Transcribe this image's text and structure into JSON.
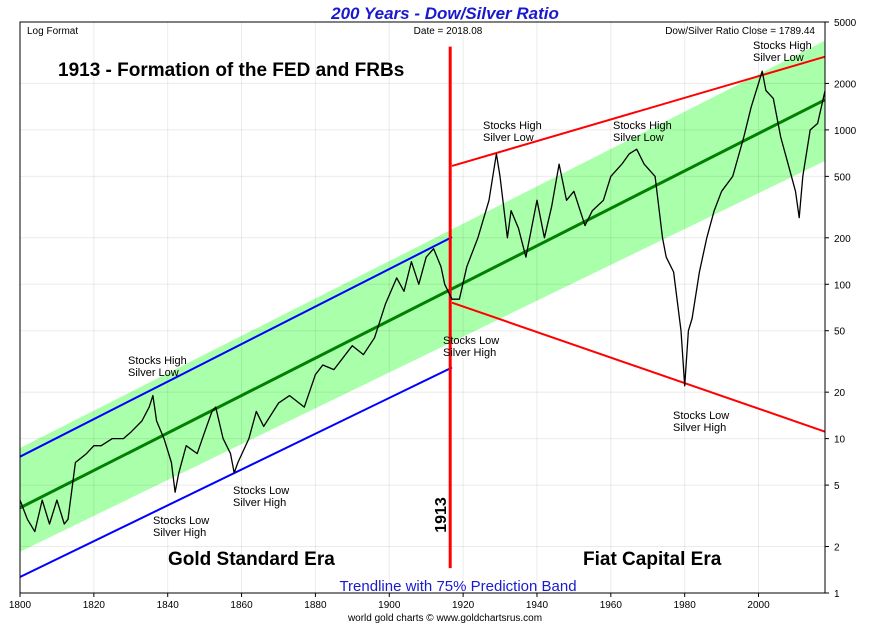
{
  "chart_data": {
    "type": "line",
    "title": "200 Years - Dow/Silver Ratio",
    "header": [
      "Log Format",
      "Date = 2018.08",
      "Dow/Silver Ratio Close = 1789.44"
    ],
    "footer": "world gold charts © www.goldchartsrus.com",
    "log_scale": true,
    "grid": true,
    "xlim": [
      1800,
      2018
    ],
    "xticks": [
      1800,
      1820,
      1840,
      1860,
      1880,
      1900,
      1920,
      1940,
      1960,
      1980,
      2000
    ],
    "ylim": [
      1,
      5000
    ],
    "yticks": [
      1,
      2,
      5,
      10,
      20,
      50,
      100,
      200,
      500,
      1000,
      2000,
      5000
    ],
    "x": [
      1800,
      1802,
      1804,
      1806,
      1808,
      1810,
      1812,
      1813,
      1815,
      1818,
      1820,
      1822,
      1825,
      1828,
      1830,
      1833,
      1835,
      1836,
      1837,
      1839,
      1841,
      1842,
      1843,
      1845,
      1848,
      1850,
      1852,
      1853,
      1855,
      1857,
      1858,
      1859,
      1862,
      1864,
      1866,
      1870,
      1873,
      1877,
      1880,
      1882,
      1885,
      1890,
      1893,
      1896,
      1899,
      1902,
      1904,
      1906,
      1908,
      1910,
      1912,
      1914,
      1915,
      1917,
      1919,
      1921,
      1924,
      1927,
      1929,
      1930,
      1932,
      1933,
      1935,
      1937,
      1940,
      1942,
      1944,
      1946,
      1948,
      1950,
      1953,
      1955,
      1958,
      1960,
      1963,
      1965,
      1967,
      1969,
      1972,
      1974,
      1975,
      1977,
      1979,
      1980,
      1981,
      1982,
      1984,
      1986,
      1988,
      1990,
      1993,
      1996,
      1998,
      2000,
      2001,
      2002,
      2004,
      2006,
      2008,
      2010,
      2011,
      2012,
      2014,
      2016,
      2018
    ],
    "series": [
      {
        "color": "#000000",
        "values": [
          4,
          3,
          2.5,
          4,
          2.8,
          4,
          2.8,
          3,
          7,
          8,
          9,
          9,
          10,
          10,
          11,
          13,
          16,
          19,
          13,
          10,
          7,
          4.5,
          6,
          9,
          8,
          11,
          15,
          16,
          10,
          8,
          6,
          7,
          10,
          15,
          12,
          17,
          19,
          16,
          26,
          30,
          28,
          40,
          35,
          45,
          75,
          110,
          90,
          140,
          100,
          150,
          170,
          130,
          100,
          80,
          80,
          130,
          200,
          350,
          700,
          500,
          200,
          300,
          230,
          150,
          350,
          200,
          320,
          600,
          350,
          400,
          240,
          300,
          350,
          500,
          600,
          700,
          750,
          600,
          500,
          200,
          150,
          120,
          50,
          22,
          50,
          60,
          120,
          200,
          300,
          400,
          500,
          900,
          1400,
          2000,
          2400,
          1800,
          1600,
          900,
          600,
          400,
          270,
          500,
          1000,
          1100,
          1789.44
        ]
      }
    ],
    "band": {
      "color": "#aaffaa",
      "x": [
        1800,
        2018
      ],
      "lower": [
        1.85,
        630
      ],
      "upper": [
        8.7,
        3786
      ]
    },
    "lines": [
      {
        "color": "#008000",
        "x": [
          1800,
          2018
        ],
        "y": [
          3.56,
          1567
        ]
      },
      {
        "color": "#0000ff",
        "x": [
          1800,
          1917
        ],
        "y": [
          7.64,
          202
        ]
      },
      {
        "color": "#0000ff",
        "x": [
          1800,
          1917
        ],
        "y": [
          1.27,
          28.9
        ]
      },
      {
        "color": "#ff0000",
        "x": [
          1917,
          2018
        ],
        "y": [
          584,
          2979
        ]
      },
      {
        "color": "#ff0000",
        "x": [
          1917,
          2018
        ],
        "y": [
          76,
          11.1
        ]
      },
      {
        "color": "#ff0000",
        "x": [
          1916.5,
          1916.5
        ],
        "y": [
          1.45,
          3460
        ]
      }
    ],
    "annotations": [
      {
        "lines": [
          "1913 - Formation of the FED and FRBs"
        ]
      },
      {
        "lines": [
          "Stocks High",
          "Silver Low"
        ]
      },
      {
        "lines": [
          "Stocks Low",
          "Silver High"
        ]
      },
      {
        "lines": [
          "Stocks Low",
          "Silver High"
        ]
      },
      {
        "lines": [
          "Stocks Low",
          "Silver High"
        ]
      },
      {
        "lines": [
          "Stocks High",
          "Silver Low"
        ]
      },
      {
        "lines": [
          "Stocks High",
          "Silver Low"
        ]
      },
      {
        "lines": [
          "Stocks High",
          "Silver Low"
        ]
      },
      {
        "lines": [
          "Stocks Low",
          "Silver High"
        ]
      },
      {
        "lines": [
          "Gold Standard Era"
        ]
      },
      {
        "lines": [
          "Fiat Capital Era"
        ]
      },
      {
        "lines": [
          "1913"
        ]
      },
      {
        "lines": [
          "Trendline with 75% Prediction Band"
        ]
      }
    ]
  }
}
